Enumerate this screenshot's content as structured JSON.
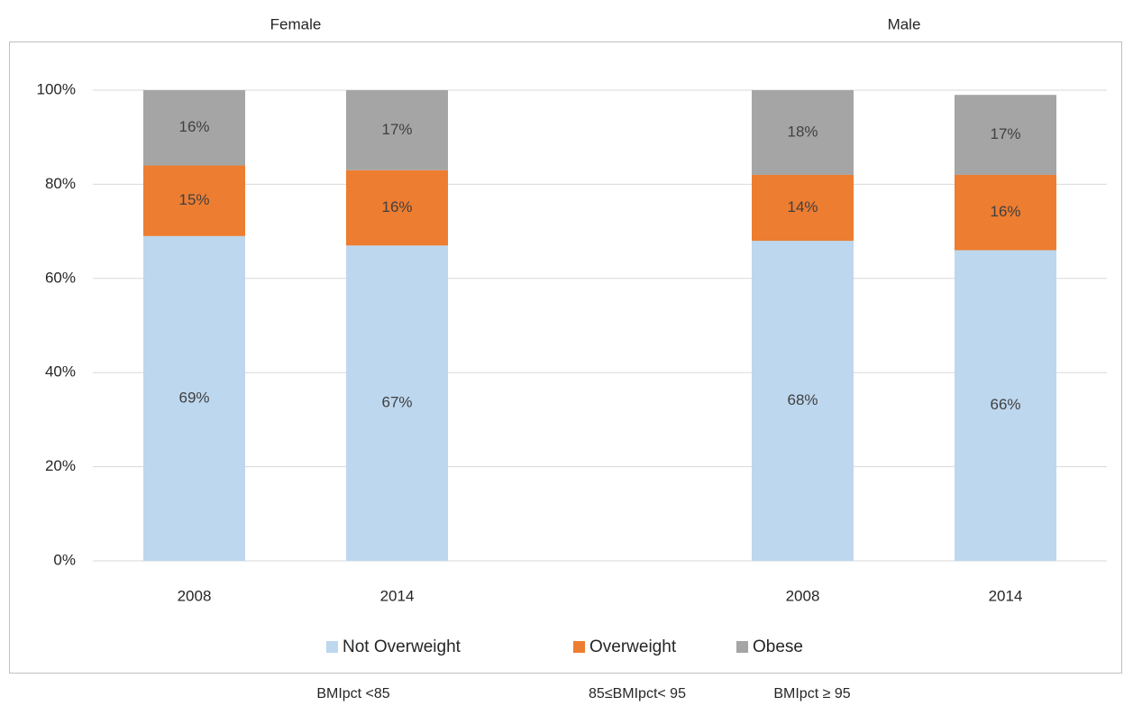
{
  "chart_data": {
    "type": "stacked_bar",
    "group_labels": [
      "Female",
      "Male"
    ],
    "categories": [
      "2008",
      "2014",
      null,
      "2008",
      "2014"
    ],
    "series": [
      {
        "name": "Not Overweight",
        "color": "#bdd7ee",
        "values": [
          69,
          67,
          null,
          68,
          66
        ],
        "value_labels": [
          "69%",
          "67%",
          null,
          "68%",
          "66%"
        ],
        "note": "BMIpct <85"
      },
      {
        "name": "Overweight",
        "color": "#ed7d31",
        "values": [
          15,
          16,
          null,
          14,
          16
        ],
        "value_labels": [
          "15%",
          "16%",
          null,
          "14%",
          "16%"
        ],
        "note": "85≤BMIpct< 95"
      },
      {
        "name": "Obese",
        "color": "#a5a5a5",
        "values": [
          16,
          17,
          null,
          18,
          17
        ],
        "value_labels": [
          "16%",
          "17%",
          null,
          "18%",
          "17%"
        ],
        "note": "BMIpct ≥ 95"
      }
    ],
    "ylim": [
      0,
      100
    ],
    "yticks": [
      {
        "value": 0,
        "label": "0%"
      },
      {
        "value": 20,
        "label": "20%"
      },
      {
        "value": 40,
        "label": "40%"
      },
      {
        "value": 60,
        "label": "60%"
      },
      {
        "value": 80,
        "label": "80%"
      },
      {
        "value": 100,
        "label": "100%"
      }
    ],
    "grid": true,
    "legend": "bottom"
  }
}
